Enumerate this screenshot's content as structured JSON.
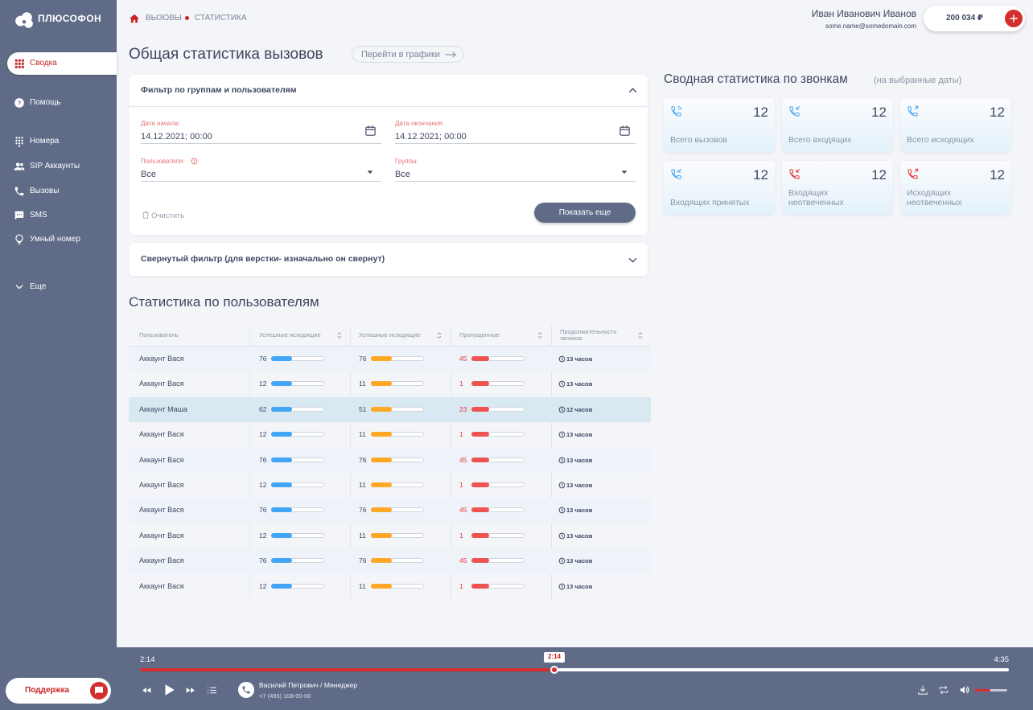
{
  "sidebar": {
    "logo": "ПЛЮСОФОН",
    "nav": [
      "Сводка",
      "Помощь",
      "Номера",
      "SIP Аккаунты",
      "Вызовы",
      "SMS",
      "Умный номер",
      "Еще"
    ],
    "support": "Поддержка"
  },
  "header": {
    "breadcrumb": [
      "ВЫЗОВЫ",
      "СТАТИСТИКА"
    ],
    "user_name": "Иван Иванович Иванов",
    "user_email": "some.name@somedomain.com",
    "balance": "200 034 ₽"
  },
  "page": {
    "title": "Общая статистика вызовов",
    "charts_button": "Перейти в графики"
  },
  "filter": {
    "title": "Фильтр по группам и пользователям",
    "fields": [
      {
        "label": "Дата начала:",
        "value": "14.12.2021; 00:00"
      },
      {
        "label": "Дата окончания:",
        "value": "14.12.2021; 00:00"
      },
      {
        "label": "Пользователи:",
        "value": "Все"
      },
      {
        "label": "Группы:",
        "value": "Все"
      }
    ],
    "clear": "Очистить",
    "submit": "Показать еще",
    "collapsed_title": "Свернутый фильтр (для верстки- изначально он свернут)"
  },
  "table": {
    "title": "Статистика по пользователям",
    "headers": [
      "Пользователь",
      "Успешные исходящие",
      "Успешные исходящие",
      "Пропущенные",
      "Продолжительность звонков"
    ],
    "rows": [
      [
        "Аккаунт Вася",
        76,
        76,
        45,
        "13 часов"
      ],
      [
        "Аккаунт Вася",
        12,
        11,
        1,
        "13 часов"
      ],
      [
        "Аккаунт Маша",
        62,
        51,
        23,
        "12 часов"
      ],
      [
        "Аккаунт Вася",
        12,
        11,
        1,
        "13 часов"
      ],
      [
        "Аккаунт Вася",
        76,
        76,
        45,
        "13 часов"
      ],
      [
        "Аккаунт Вася",
        12,
        11,
        1,
        "13 часов"
      ],
      [
        "Аккаунт Вася",
        76,
        76,
        45,
        "13 часов"
      ],
      [
        "Аккаунт Вася",
        12,
        11,
        1,
        "13 часов"
      ],
      [
        "Аккаунт Вася",
        76,
        76,
        45,
        "13 часов"
      ],
      [
        "Аккаунт Вася",
        12,
        11,
        1,
        "13 часов"
      ]
    ]
  },
  "summary": {
    "title": "Сводная статистика по звонкам",
    "subtitle": "(на выбранные даты)",
    "cards": [
      {
        "label": "Всего вызовов",
        "value": 12
      },
      {
        "label": "Всего входящих",
        "value": 12
      },
      {
        "label": "Всего исходящих",
        "value": 12
      },
      {
        "label": "Входящих принятых",
        "value": 12
      },
      {
        "label": "Входящих неотвеченных",
        "value": 12
      },
      {
        "label": "Исходящих неотвеченных",
        "value": 12
      }
    ]
  },
  "player": {
    "current": "2:14",
    "marker": "2:14",
    "total": "4:35",
    "caller": "Василий Петрович / Менеджер",
    "phone": "+7 (495) 108-00-00"
  }
}
